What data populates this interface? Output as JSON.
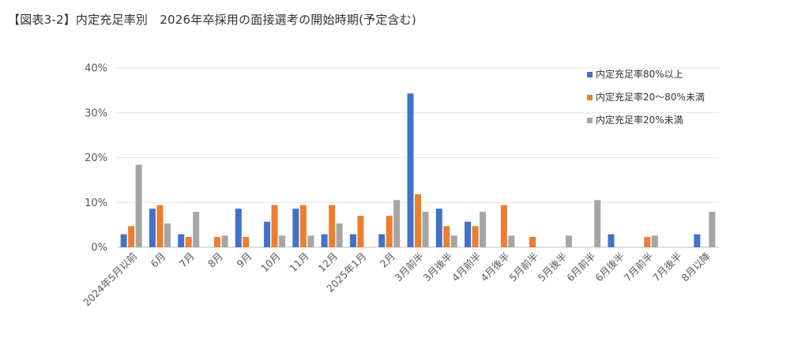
{
  "title": "【図表3-2】内定充足率別　2026年卒採用の面接選考の開始時期(予定含む)",
  "chart_data": {
    "type": "bar",
    "categories": [
      "2024年5月以前",
      "6月",
      "7月",
      "8月",
      "9月",
      "10月",
      "11月",
      "12月",
      "2025年1月",
      "2月",
      "3月前半",
      "3月後半",
      "4月前半",
      "4月後半",
      "5月前半",
      "5月後半",
      "6月前半",
      "6月後半",
      "7月前半",
      "7月後半",
      "8月以降"
    ],
    "series": [
      {
        "name": "内定充足率80%以上",
        "color": "#4472C4",
        "values": [
          2.9,
          8.6,
          2.9,
          0,
          8.6,
          5.7,
          8.6,
          2.9,
          2.9,
          2.9,
          34.3,
          8.6,
          5.7,
          0,
          0,
          0,
          0,
          2.9,
          0,
          0,
          2.9
        ]
      },
      {
        "name": "内定充足率20～80%未満",
        "color": "#ED7D31",
        "values": [
          4.7,
          9.4,
          2.3,
          2.3,
          2.3,
          9.4,
          9.4,
          9.4,
          7.0,
          7.0,
          11.8,
          4.7,
          4.7,
          9.4,
          2.3,
          0,
          0,
          0,
          2.3,
          0,
          0
        ]
      },
      {
        "name": "内定充足率20%未満",
        "color": "#A5A5A5",
        "values": [
          18.4,
          5.3,
          7.9,
          2.6,
          0,
          2.6,
          2.6,
          5.3,
          0,
          10.5,
          7.9,
          2.6,
          7.9,
          2.6,
          0,
          2.6,
          10.5,
          0,
          2.6,
          0,
          7.9
        ]
      }
    ],
    "y_ticks": [
      "0%",
      "10%",
      "20%",
      "30%",
      "40%"
    ],
    "ylim": [
      0,
      40
    ],
    "grid": true,
    "legend_position": "top-right",
    "xlabel": "",
    "ylabel": ""
  }
}
